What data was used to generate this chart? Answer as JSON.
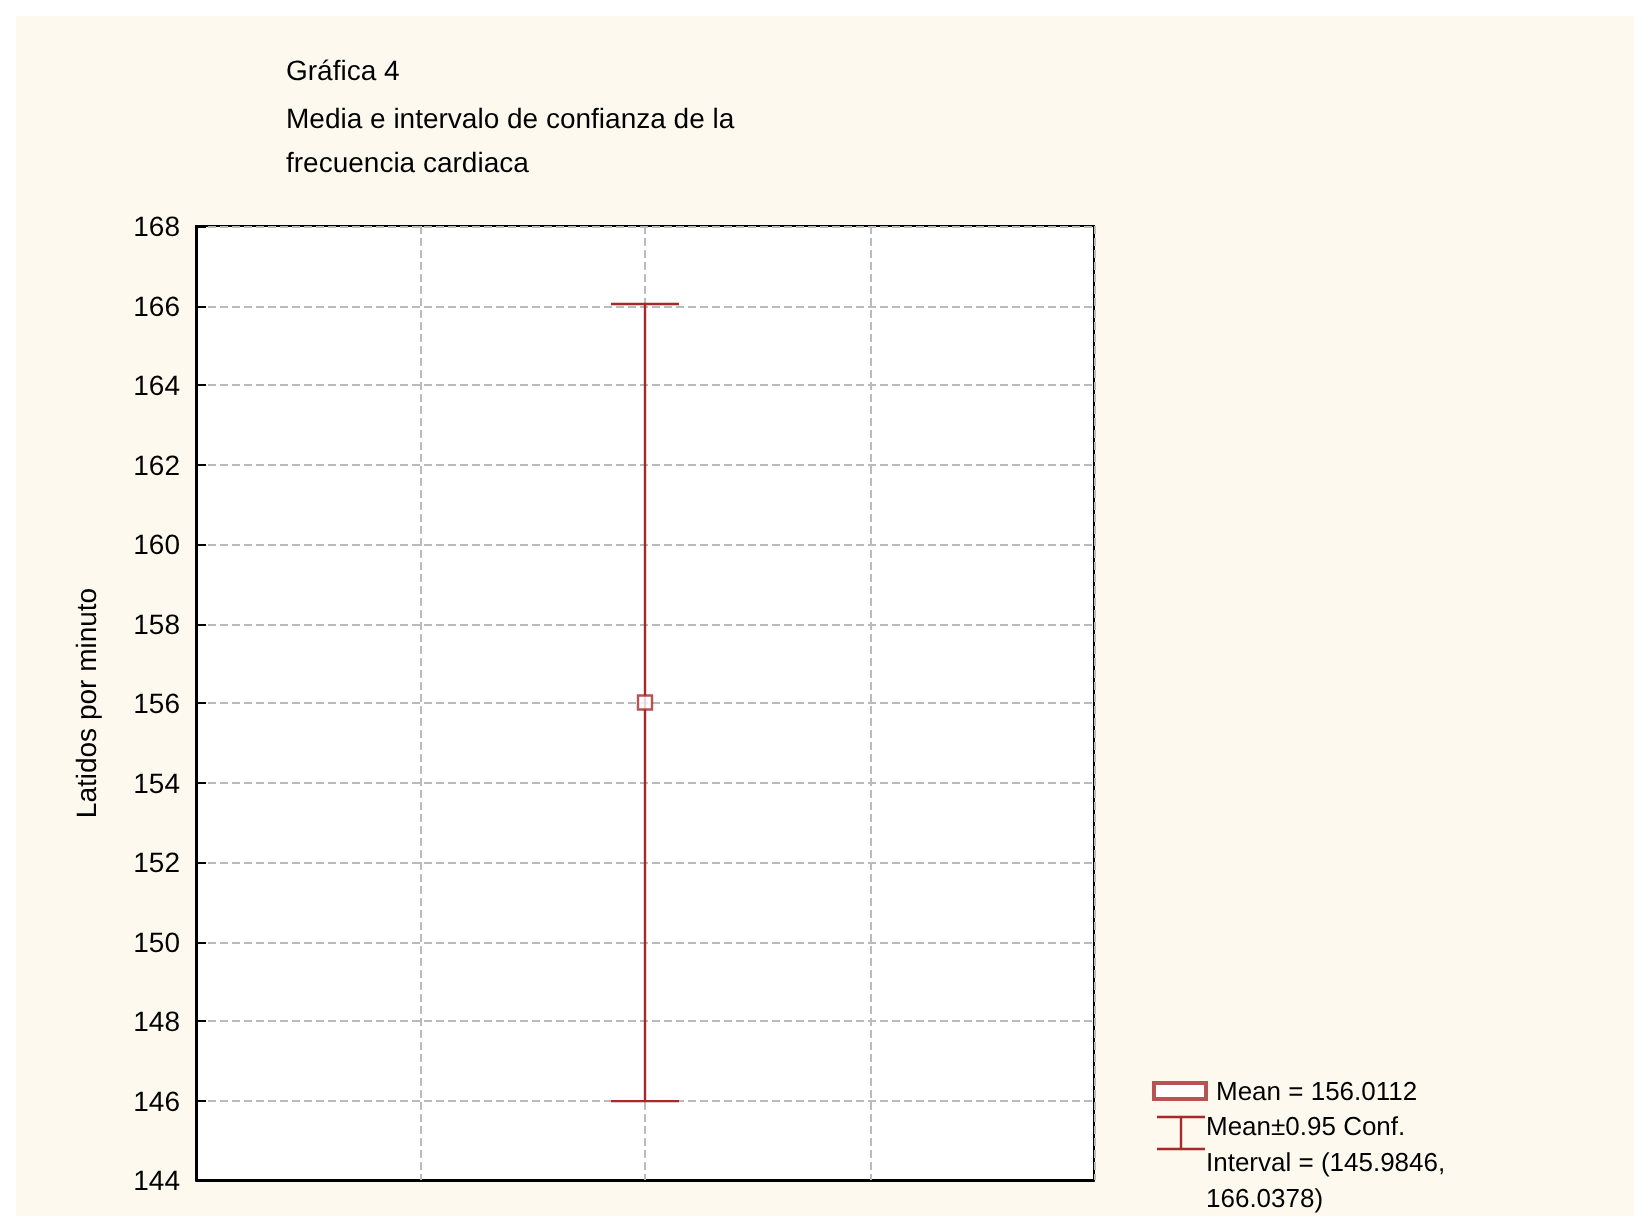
{
  "chart_data": {
    "type": "scatter",
    "title": "Gráfica 4",
    "subtitle": "Media e intervalo de confianza de la frecuencia cardiaca",
    "ylabel": "Latidos por minuto",
    "categories": [
      null
    ],
    "series": [
      {
        "name": "Mean = 156.0112",
        "color": "#a52a2a",
        "values": [
          156.0112
        ],
        "errors": [
          [
            145.9846,
            166.0378
          ]
        ]
      }
    ],
    "annotations": [
      "Mean±0.95 Conf. Interval = (145.9846, 166.0378)"
    ],
    "ylim": [
      144,
      168
    ],
    "yticks": [
      144,
      146,
      148,
      150,
      152,
      154,
      156,
      158,
      160,
      162,
      164,
      166,
      168
    ],
    "grid": true,
    "legend": "bottom right",
    "marker": "square"
  }
}
